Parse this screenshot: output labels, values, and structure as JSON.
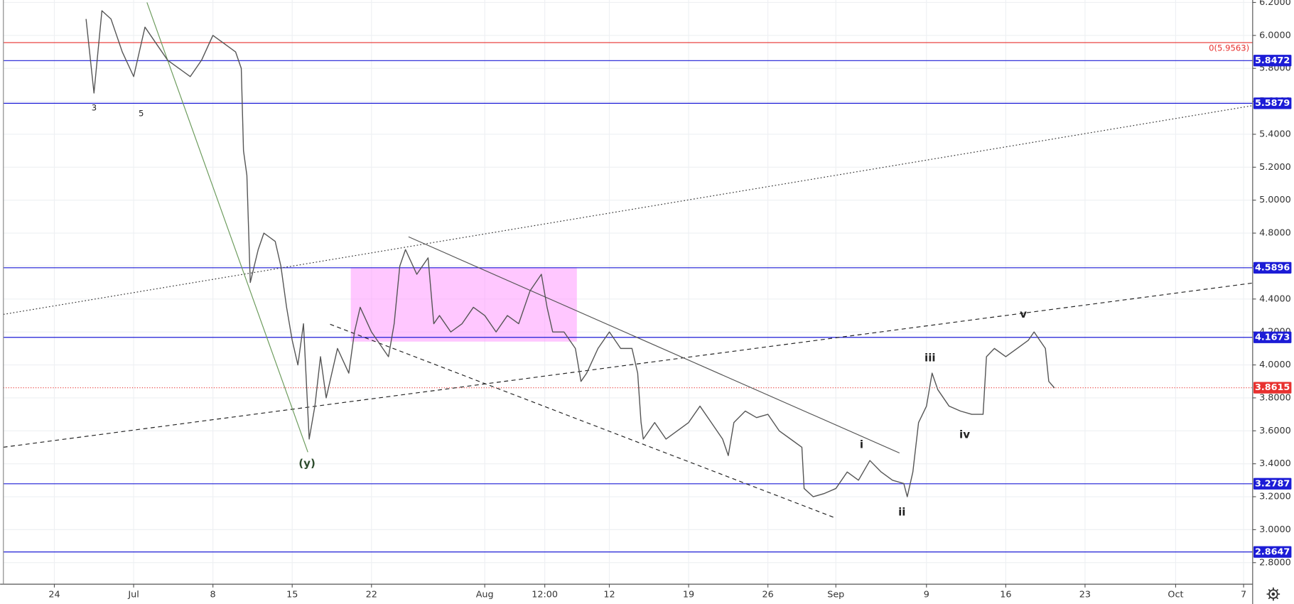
{
  "chart_data": {
    "type": "line",
    "color": "#555555",
    "x": [
      2.8,
      3.5,
      4.2,
      5,
      6,
      7,
      8,
      9,
      10,
      11,
      12,
      13,
      14,
      15,
      16,
      16.5,
      16.7,
      17,
      17.3,
      18,
      18.5,
      19.5,
      20,
      20.5,
      21,
      21.5,
      22,
      22.5,
      23,
      23.5,
      24,
      25,
      26,
      26.5,
      27,
      28,
      29,
      29.5,
      30,
      30.5,
      31,
      32,
      33,
      33.5,
      34,
      35,
      36,
      37,
      38,
      39,
      40,
      41,
      42,
      43,
      43.5,
      44,
      45,
      46,
      46.5,
      47,
      48,
      49,
      50,
      51,
      51.5,
      51.8,
      52,
      53,
      54,
      55,
      56,
      57,
      58,
      59,
      59.5,
      60,
      61,
      62,
      63,
      64,
      65,
      66,
      66.2,
      67,
      68,
      69,
      70,
      71,
      72,
      73,
      74,
      75,
      75.3,
      75.8,
      76.3,
      77,
      77.5,
      78,
      79,
      80,
      81,
      82,
      82.3,
      83,
      84,
      85,
      86,
      86.5,
      87,
      87.5,
      87.8,
      88.3
    ],
    "values": [
      6.1,
      5.65,
      6.15,
      6.1,
      5.9,
      5.75,
      6.05,
      5.95,
      5.85,
      5.8,
      5.75,
      5.85,
      6.0,
      5.95,
      5.9,
      5.8,
      5.3,
      5.15,
      4.5,
      4.7,
      4.8,
      4.75,
      4.6,
      4.35,
      4.15,
      4.0,
      4.25,
      3.55,
      3.75,
      4.05,
      3.8,
      4.1,
      3.95,
      4.2,
      4.35,
      4.2,
      4.1,
      4.05,
      4.25,
      4.6,
      4.7,
      4.55,
      4.65,
      4.25,
      4.3,
      4.2,
      4.25,
      4.35,
      4.3,
      4.2,
      4.3,
      4.25,
      4.45,
      4.55,
      4.35,
      4.2,
      4.2,
      4.1,
      3.9,
      3.95,
      4.1,
      4.2,
      4.1,
      4.1,
      3.95,
      3.65,
      3.55,
      3.65,
      3.55,
      3.6,
      3.65,
      3.75,
      3.65,
      3.55,
      3.45,
      3.65,
      3.72,
      3.68,
      3.7,
      3.6,
      3.55,
      3.5,
      3.25,
      3.2,
      3.22,
      3.25,
      3.35,
      3.3,
      3.42,
      3.35,
      3.3,
      3.28,
      3.2,
      3.35,
      3.65,
      3.75,
      3.95,
      3.85,
      3.75,
      3.72,
      3.7,
      3.7,
      4.05,
      4.1,
      4.05,
      4.1,
      4.15,
      4.2,
      4.15,
      4.1,
      3.9,
      3.86
    ],
    "xlim": [
      -4.5,
      105.8
    ],
    "ylim": [
      2.669,
      6.215
    ],
    "xticks": [
      {
        "value": 0,
        "label": "24"
      },
      {
        "value": 7,
        "label": "Jul"
      },
      {
        "value": 14,
        "label": "8"
      },
      {
        "value": 21,
        "label": "15"
      },
      {
        "value": 28,
        "label": "22"
      },
      {
        "value": 38,
        "label": "Aug"
      },
      {
        "value": 43.3,
        "label": "12:00"
      },
      {
        "value": 49,
        "label": "12"
      },
      {
        "value": 56,
        "label": "19"
      },
      {
        "value": 63,
        "label": "26"
      },
      {
        "value": 69,
        "label": "Sep"
      },
      {
        "value": 77,
        "label": "9"
      },
      {
        "value": 84,
        "label": "16"
      },
      {
        "value": 91,
        "label": "23"
      },
      {
        "value": 99,
        "label": "Oct"
      },
      {
        "value": 105,
        "label": "7"
      }
    ],
    "yticks": [
      {
        "value": 2.8,
        "label": "2.8000"
      },
      {
        "value": 3.0,
        "label": "3.0000"
      },
      {
        "value": 3.2,
        "label": "3.2000"
      },
      {
        "value": 3.4,
        "label": "3.4000"
      },
      {
        "value": 3.6,
        "label": "3.6000"
      },
      {
        "value": 3.8,
        "label": "3.8000"
      },
      {
        "value": 4.0,
        "label": "4.0000"
      },
      {
        "value": 4.2,
        "label": "4.2000"
      },
      {
        "value": 4.4,
        "label": "4.4000"
      },
      {
        "value": 4.6,
        "label": "4.6000"
      },
      {
        "value": 4.8,
        "label": "4.8000"
      },
      {
        "value": 5.0,
        "label": "5.0000"
      },
      {
        "value": 5.2,
        "label": "5.2000"
      },
      {
        "value": 5.4,
        "label": "5.4000"
      },
      {
        "value": 5.6,
        "label": "5.6000"
      },
      {
        "value": 5.8,
        "label": "5.8000"
      },
      {
        "value": 6.0,
        "label": "6.0000"
      },
      {
        "value": 6.2,
        "label": "6.2000"
      }
    ],
    "grid": true,
    "levels": [
      5.8472,
      5.5879,
      4.5896,
      4.1673,
      3.2787,
      2.8647
    ],
    "level_color": "#1c1cd6",
    "fib_level": {
      "value": 5.9563,
      "label": "0(5.9563)"
    },
    "fib_color": "#e8312f",
    "last_price": 3.8615,
    "last_price_color": "#e8312f",
    "annotations": [
      "3",
      "5",
      "(y)",
      "i",
      "ii",
      "iii",
      "iv",
      "v"
    ]
  }
}
